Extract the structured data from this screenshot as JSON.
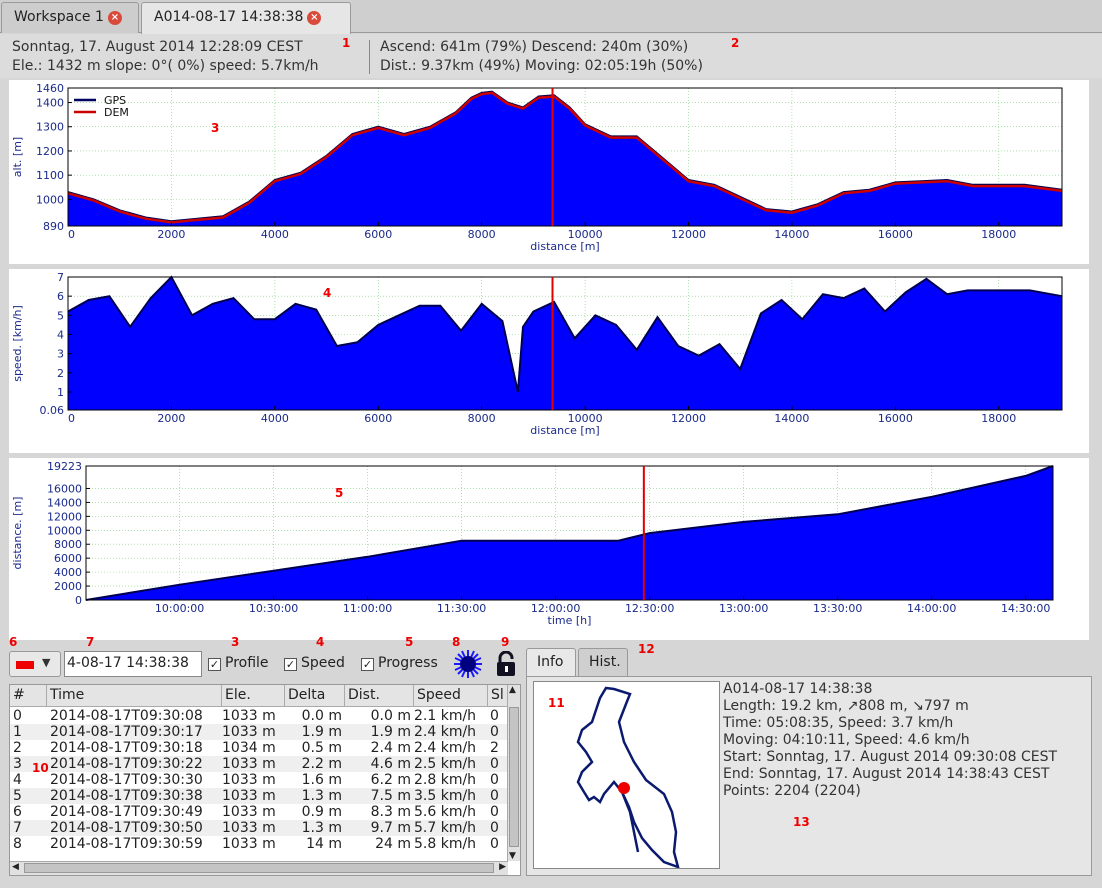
{
  "tabs": [
    {
      "label": "Workspace 1",
      "close_icon": "×"
    },
    {
      "label": "A014-08-17 14:38:38",
      "close_icon": "×"
    }
  ],
  "stats": {
    "datetime": "Sonntag, 17. August 2014 12:28:09 CEST",
    "current": "Ele.: 1432 m slope:  0°( 0%) speed: 5.7km/h",
    "ascend_descend": "Ascend: 641m (79%) Descend: 240m (30%)",
    "dist_moving": "Dist.: 9.37km (49%) Moving: 02:05:19h (50%)"
  },
  "markers": {
    "m1": "1",
    "m2": "2",
    "m3": "3",
    "m4": "4",
    "m5": "5",
    "m6": "6",
    "m7": "7",
    "m3b": "3",
    "m4b": "4",
    "m5b": "5",
    "m8": "8",
    "m9": "9",
    "m10": "10",
    "m11": "11",
    "m12": "12",
    "m13": "13"
  },
  "chart_data": [
    {
      "type": "area",
      "title": "",
      "xlabel": "distance [m]",
      "ylabel": "alt. [m]",
      "xlim": [
        0,
        19223
      ],
      "ylim": [
        890,
        1460
      ],
      "xticks": [
        0,
        2000,
        4000,
        6000,
        8000,
        10000,
        12000,
        14000,
        16000,
        18000
      ],
      "yticks": [
        890,
        1000,
        1100,
        1200,
        1300,
        1400,
        1460
      ],
      "grid": true,
      "legend": {
        "position": "top-left",
        "entries": [
          "GPS",
          "DEM"
        ]
      },
      "cursor_x": 9370,
      "x": [
        0,
        500,
        1000,
        1500,
        2000,
        2500,
        3000,
        3500,
        4000,
        4500,
        5000,
        5500,
        6000,
        6500,
        7000,
        7500,
        7800,
        8000,
        8200,
        8500,
        8800,
        9100,
        9400,
        9700,
        10000,
        10500,
        11000,
        11500,
        12000,
        12500,
        13000,
        13500,
        14000,
        14500,
        15000,
        15500,
        16000,
        16500,
        17000,
        17500,
        18000,
        18500,
        19223
      ],
      "series": [
        {
          "name": "GPS",
          "color": "#0000ff",
          "values": [
            1030,
            1000,
            955,
            925,
            910,
            920,
            930,
            990,
            1080,
            1110,
            1180,
            1270,
            1300,
            1270,
            1300,
            1360,
            1420,
            1440,
            1445,
            1400,
            1380,
            1425,
            1430,
            1380,
            1310,
            1260,
            1260,
            1170,
            1080,
            1060,
            1010,
            960,
            950,
            980,
            1030,
            1040,
            1070,
            1075,
            1080,
            1060,
            1060,
            1060,
            1040
          ]
        },
        {
          "name": "DEM",
          "color": "#cc0000",
          "values": [
            1025,
            995,
            950,
            920,
            905,
            915,
            925,
            985,
            1075,
            1105,
            1175,
            1265,
            1295,
            1265,
            1295,
            1355,
            1415,
            1435,
            1440,
            1395,
            1375,
            1420,
            1425,
            1375,
            1305,
            1255,
            1255,
            1165,
            1075,
            1055,
            1005,
            955,
            945,
            975,
            1025,
            1035,
            1065,
            1070,
            1075,
            1055,
            1055,
            1055,
            1035
          ]
        }
      ]
    },
    {
      "type": "area",
      "title": "",
      "xlabel": "distance [m]",
      "ylabel": "speed. [km/h]",
      "xlim": [
        0,
        19223
      ],
      "ylim": [
        0.06,
        7
      ],
      "xticks": [
        0,
        2000,
        4000,
        6000,
        8000,
        10000,
        12000,
        14000,
        16000,
        18000
      ],
      "yticks": [
        0.06,
        1,
        2,
        3,
        4,
        5,
        6,
        7
      ],
      "grid": true,
      "cursor_x": 9370,
      "x": [
        0,
        400,
        800,
        1200,
        1600,
        2000,
        2400,
        2800,
        3200,
        3600,
        4000,
        4400,
        4800,
        5200,
        5600,
        6000,
        6400,
        6800,
        7200,
        7600,
        8000,
        8400,
        8700,
        8800,
        9000,
        9400,
        9800,
        10200,
        10600,
        11000,
        11400,
        11800,
        12200,
        12600,
        13000,
        13400,
        13800,
        14200,
        14600,
        15000,
        15400,
        15800,
        16200,
        16600,
        17000,
        17400,
        17800,
        18200,
        18600,
        19223
      ],
      "series": [
        {
          "name": "",
          "color": "#0000ff",
          "values": [
            5.2,
            5.8,
            6.0,
            4.4,
            5.9,
            7.0,
            5.0,
            5.6,
            5.9,
            4.8,
            4.8,
            5.6,
            5.3,
            3.4,
            3.6,
            4.5,
            5.0,
            5.5,
            5.5,
            4.2,
            5.6,
            4.7,
            1.0,
            4.4,
            5.2,
            5.7,
            3.8,
            5.0,
            4.5,
            3.2,
            4.9,
            3.4,
            2.9,
            3.5,
            2.2,
            5.1,
            5.8,
            4.8,
            6.1,
            5.9,
            6.4,
            5.2,
            6.2,
            6.9,
            6.1,
            6.3,
            6.3,
            6.3,
            6.3,
            6.0
          ]
        }
      ]
    },
    {
      "type": "area",
      "title": "",
      "xlabel": "time [h]",
      "ylabel": "distance. [m]",
      "xlim": [
        "09:30:08",
        "14:38:43"
      ],
      "ylim": [
        0,
        19223
      ],
      "xticks": [
        "10:00:00",
        "10:30:00",
        "11:00:00",
        "11:30:00",
        "12:00:00",
        "12:30:00",
        "13:00:00",
        "13:30:00",
        "14:00:00",
        "14:30:00"
      ],
      "yticks": [
        0,
        2000,
        4000,
        6000,
        8000,
        10000,
        12000,
        14000,
        16000,
        19223
      ],
      "grid": true,
      "cursor_x": "12:28:09",
      "x": [
        "09:30:08",
        "10:00:00",
        "10:30:00",
        "11:00:00",
        "11:30:00",
        "12:00:00",
        "12:20:00",
        "12:30:00",
        "13:00:00",
        "13:30:00",
        "14:00:00",
        "14:30:00",
        "14:38:43"
      ],
      "series": [
        {
          "name": "",
          "color": "#0000ff",
          "values": [
            0,
            2200,
            4200,
            6200,
            8500,
            8500,
            8500,
            9600,
            11200,
            12300,
            14800,
            17800,
            19223
          ]
        }
      ]
    }
  ],
  "controls": {
    "time_value": "4-08-17 14:38:38",
    "profile_label": "Profile",
    "speed_label": "Speed",
    "progress_label": "Progress",
    "check_mark": "✓",
    "caret": "▼",
    "sun_icon": "sun-icon",
    "lock_icon": "lock-icon",
    "color_swatch": "#e00000"
  },
  "table": {
    "headers": [
      "#",
      "Time",
      "Ele.",
      "Delta",
      "Dist.",
      "Speed",
      "Sl"
    ],
    "rows": [
      {
        "n": "0",
        "time": "2014-08-17T09:30:08",
        "ele": "1033 m",
        "delta": "0.0 m",
        "dist": "0.0 m",
        "speed": "2.1 km/h",
        "sl": "0"
      },
      {
        "n": "1",
        "time": "2014-08-17T09:30:17",
        "ele": "1033 m",
        "delta": "1.9 m",
        "dist": "1.9 m",
        "speed": "2.4 km/h",
        "sl": "0"
      },
      {
        "n": "2",
        "time": "2014-08-17T09:30:18",
        "ele": "1034 m",
        "delta": "0.5 m",
        "dist": "2.4 m",
        "speed": "2.4 km/h",
        "sl": "2"
      },
      {
        "n": "3",
        "time": "2014-08-17T09:30:22",
        "ele": "1033 m",
        "delta": "2.2 m",
        "dist": "4.6 m",
        "speed": "2.5 km/h",
        "sl": "0"
      },
      {
        "n": "4",
        "time": "2014-08-17T09:30:30",
        "ele": "1033 m",
        "delta": "1.6 m",
        "dist": "6.2 m",
        "speed": "2.8 km/h",
        "sl": "0"
      },
      {
        "n": "5",
        "time": "2014-08-17T09:30:38",
        "ele": "1033 m",
        "delta": "1.3 m",
        "dist": "7.5 m",
        "speed": "3.5 km/h",
        "sl": "0"
      },
      {
        "n": "6",
        "time": "2014-08-17T09:30:49",
        "ele": "1033 m",
        "delta": "0.9 m",
        "dist": "8.3 m",
        "speed": "5.6 km/h",
        "sl": "0"
      },
      {
        "n": "7",
        "time": "2014-08-17T09:30:50",
        "ele": "1033 m",
        "delta": "1.3 m",
        "dist": "9.7 m",
        "speed": "5.7 km/h",
        "sl": "0"
      },
      {
        "n": "8",
        "time": "2014-08-17T09:30:59",
        "ele": "1033 m",
        "delta": "14 m",
        "dist": "24 m",
        "speed": "5.8 km/h",
        "sl": "0"
      }
    ],
    "scroll_up": "▲",
    "scroll_down": "▼",
    "scroll_left": "◀",
    "scroll_right": "▶"
  },
  "info": {
    "tabs": [
      "Info",
      "Hist."
    ],
    "lines": [
      "A014-08-17 14:38:38",
      "Length: 19.2 km, ↗808 m, ↘797 m",
      "Time: 05:08:35, Speed: 3.7 km/h",
      "Moving: 04:10:11, Speed: 4.6 km/h",
      "Start: Sonntag, 17. August 2014 09:30:08 CEST",
      "End: Sonntag, 17. August 2014 14:38:43 CEST",
      "Points: 2204 (2204)"
    ]
  }
}
